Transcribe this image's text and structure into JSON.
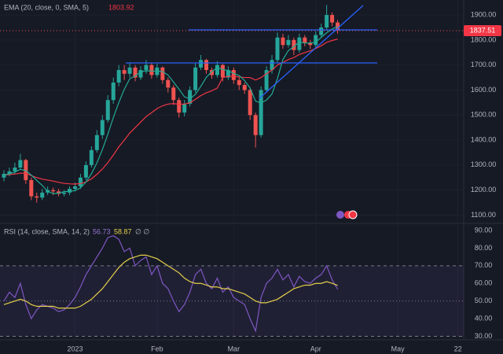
{
  "chart_data": [
    {
      "type": "candlestick",
      "indicator_label": "EMA (20, close, 0, SMA, 5)",
      "categories": [
        null,
        null,
        null,
        null,
        null,
        null,
        null,
        null,
        null,
        null,
        null,
        null,
        null,
        "2023",
        null,
        null,
        null,
        null,
        null,
        null,
        null,
        null,
        null,
        null,
        null,
        null,
        null,
        null,
        "Feb",
        null,
        null,
        null,
        null,
        null,
        null,
        null,
        null,
        null,
        null,
        null,
        null,
        null,
        "Mar",
        null,
        null,
        null,
        null,
        null,
        null,
        null,
        null,
        null,
        null,
        null,
        null,
        null,
        null,
        "Apr",
        null,
        null,
        null,
        null,
        null,
        null,
        null,
        null,
        null,
        null,
        null,
        null,
        null,
        null,
        "May",
        null,
        null,
        null,
        null,
        null,
        null,
        null,
        null,
        null,
        null,
        "22"
      ],
      "open": [
        1250,
        1265,
        1275,
        1290,
        1320,
        1240,
        1175,
        1170,
        1190,
        1200,
        1195,
        1185,
        1190,
        1205,
        1215,
        1250,
        1300,
        1360,
        1420,
        1480,
        1560,
        1630,
        1680,
        1665,
        1690,
        1650,
        1680,
        1700,
        1660,
        1690,
        1640,
        1610,
        1560,
        1510,
        1545,
        1600,
        1690,
        1720,
        1680,
        1660,
        1700,
        1650,
        1680,
        1640,
        1620,
        1600,
        1500,
        1420,
        1600,
        1680,
        1720,
        1810,
        1780,
        1800,
        1760,
        1810,
        1790,
        1780,
        1820,
        1850,
        1900,
        1870,
        null,
        null,
        null,
        null,
        null,
        null,
        null,
        null,
        null,
        null,
        null,
        null,
        null,
        null,
        null,
        null,
        null,
        null,
        null,
        null,
        null,
        null
      ],
      "high": [
        1280,
        1290,
        1310,
        1345,
        1325,
        1250,
        1190,
        1205,
        1215,
        1210,
        1205,
        1200,
        1215,
        1230,
        1265,
        1315,
        1375,
        1440,
        1500,
        1580,
        1650,
        1700,
        1700,
        1710,
        1700,
        1695,
        1720,
        1710,
        1705,
        1695,
        1650,
        1620,
        1570,
        1560,
        1615,
        1710,
        1740,
        1725,
        1690,
        1715,
        1705,
        1695,
        1690,
        1650,
        1630,
        1610,
        1510,
        1615,
        1695,
        1740,
        1830,
        1825,
        1820,
        1810,
        1825,
        1820,
        1800,
        1835,
        1865,
        1940,
        1910,
        1880,
        null,
        null,
        null,
        null,
        null,
        null,
        null,
        null,
        null,
        null,
        null,
        null,
        null,
        null,
        null,
        null,
        null,
        null,
        null,
        null,
        null,
        null
      ],
      "low": [
        1235,
        1255,
        1265,
        1280,
        1225,
        1160,
        1150,
        1160,
        1180,
        1180,
        1175,
        1175,
        1180,
        1195,
        1205,
        1240,
        1290,
        1350,
        1405,
        1470,
        1545,
        1615,
        1640,
        1650,
        1635,
        1640,
        1665,
        1645,
        1650,
        1625,
        1590,
        1540,
        1490,
        1495,
        1535,
        1590,
        1680,
        1665,
        1645,
        1650,
        1635,
        1640,
        1625,
        1600,
        1585,
        1480,
        1370,
        1410,
        1590,
        1665,
        1710,
        1765,
        1770,
        1740,
        1750,
        1775,
        1765,
        1770,
        1810,
        1840,
        1855,
        1825,
        null,
        null,
        null,
        null,
        null,
        null,
        null,
        null,
        null,
        null,
        null,
        null,
        null,
        null,
        null,
        null,
        null,
        null,
        null,
        null,
        null,
        null
      ],
      "close": [
        1265,
        1275,
        1290,
        1320,
        1240,
        1175,
        1170,
        1190,
        1200,
        1195,
        1185,
        1190,
        1205,
        1215,
        1250,
        1300,
        1360,
        1420,
        1480,
        1560,
        1630,
        1680,
        1665,
        1690,
        1650,
        1680,
        1700,
        1660,
        1690,
        1640,
        1610,
        1560,
        1510,
        1545,
        1600,
        1690,
        1720,
        1680,
        1660,
        1700,
        1650,
        1680,
        1640,
        1620,
        1600,
        1500,
        1420,
        1600,
        1680,
        1720,
        1810,
        1780,
        1800,
        1760,
        1810,
        1790,
        1780,
        1820,
        1850,
        1900,
        1870,
        1837.51,
        null,
        null,
        null,
        null,
        null,
        null,
        null,
        null,
        null,
        null,
        null,
        null,
        null,
        null,
        null,
        null,
        null,
        null,
        null,
        null,
        null,
        null
      ],
      "up_color": "#26a69a",
      "down_color": "#ef5350",
      "lines": [
        {
          "color": "#f23645",
          "values": [
            1260,
            1262,
            1264,
            1268,
            1267,
            1258,
            1250,
            1244,
            1240,
            1236,
            1231,
            1227,
            1225,
            1224,
            1226,
            1233,
            1245,
            1263,
            1284,
            1310,
            1340,
            1373,
            1400,
            1428,
            1450,
            1472,
            1494,
            1510,
            1526,
            1537,
            1544,
            1546,
            1543,
            1544,
            1549,
            1563,
            1578,
            1589,
            1597,
            1608,
            1650,
            1655,
            1655,
            1652,
            1650,
            1650,
            1640,
            1650,
            1665,
            1680,
            1700,
            1710,
            1722,
            1730,
            1742,
            1750,
            1757,
            1766,
            1777,
            1791,
            1798,
            1803.92,
            null,
            null,
            null,
            null,
            null,
            null,
            null,
            null,
            null,
            null,
            null,
            null,
            null,
            null,
            null,
            null,
            null,
            null,
            null,
            null,
            null,
            null
          ]
        },
        {
          "color": "#22ab94",
          "values": [
            1260,
            1265,
            1272,
            1283,
            1278,
            1260,
            1239,
            1219,
            1195,
            1186,
            1188,
            1194,
            1195,
            1198,
            1209,
            1232,
            1266,
            1309,
            1362,
            1424,
            1490,
            1550,
            1603,
            1645,
            1657,
            1673,
            1677,
            1676,
            1676,
            1674,
            1660,
            1632,
            1604,
            1573,
            1565,
            1583,
            1615,
            1651,
            1674,
            1690,
            1682,
            1678,
            1666,
            1658,
            1638,
            1608,
            1556,
            1548,
            1560,
            1584,
            1646,
            1722,
            1758,
            1774,
            1792,
            1788,
            1788,
            1792,
            1810,
            1829,
            1844,
            1855,
            null,
            null,
            null,
            null,
            null,
            null,
            null,
            null,
            null,
            null,
            null,
            null,
            null,
            null,
            null,
            null,
            null,
            null,
            null,
            null,
            null,
            null
          ]
        }
      ],
      "ylim": [
        1070,
        1960
      ],
      "yticks": [
        {
          "value": 1100,
          "label": "1100.00"
        },
        {
          "value": 1200,
          "label": "1200.00"
        },
        {
          "value": 1300,
          "label": "1300.00"
        },
        {
          "value": 1400,
          "label": "1400.00"
        },
        {
          "value": 1500,
          "label": "1500.00"
        },
        {
          "value": 1600,
          "label": "1600.00"
        },
        {
          "value": 1700,
          "label": "1700.00"
        },
        {
          "value": 1800,
          "label": "1800.00"
        },
        {
          "value": 1900,
          "label": "1900.00"
        }
      ],
      "grid": true
    },
    {
      "type": "line",
      "indicator_label": "RSI (14, close, SMA, 14, 2)",
      "extra_label": "∅ ∅",
      "series": [
        {
          "color": "#7e57c2",
          "values": [
            50,
            55,
            52,
            60,
            48,
            40,
            45,
            48,
            47,
            46,
            44,
            45,
            48,
            52,
            58,
            65,
            70,
            75,
            80,
            86,
            87,
            85,
            78,
            80,
            70,
            73,
            75,
            65,
            70,
            60,
            57,
            50,
            44,
            48,
            55,
            65,
            68,
            60,
            57,
            63,
            55,
            58,
            52,
            50,
            48,
            40,
            33,
            52,
            60,
            63,
            68,
            62,
            65,
            58,
            64,
            61,
            60,
            63,
            65,
            70,
            62,
            56.73,
            null,
            null,
            null,
            null,
            null,
            null,
            null,
            null,
            null,
            null,
            null,
            null,
            null,
            null,
            null,
            null,
            null,
            null,
            null,
            null,
            null,
            null
          ]
        },
        {
          "color": "#e3cf48",
          "values": [
            48,
            49,
            50,
            51,
            50,
            48,
            47,
            47,
            47,
            47,
            46,
            46,
            46,
            46,
            47,
            49,
            51,
            54,
            57,
            61,
            65,
            69,
            72,
            74,
            75,
            76,
            76,
            75,
            74,
            72,
            70,
            68,
            66,
            63,
            61,
            60,
            60,
            59,
            58,
            58,
            57,
            57,
            56,
            55,
            54,
            52,
            50,
            49,
            49,
            50,
            51,
            53,
            55,
            57,
            58,
            59,
            59,
            60,
            60,
            61,
            60,
            58.87,
            null,
            null,
            null,
            null,
            null,
            null,
            null,
            null,
            null,
            null,
            null,
            null,
            null,
            null,
            null,
            null,
            null,
            null,
            null,
            null,
            null,
            null
          ]
        }
      ],
      "ylim": [
        28,
        94
      ],
      "yticks": [
        {
          "value": 30,
          "label": "30.00"
        },
        {
          "value": 40,
          "label": "40.00"
        },
        {
          "value": 50,
          "label": "50.00"
        },
        {
          "value": 60,
          "label": "60.00"
        },
        {
          "value": 70,
          "label": "70.00"
        },
        {
          "value": 80,
          "label": "80.00"
        },
        {
          "value": 90,
          "label": "90.00"
        }
      ],
      "band": [
        30,
        70
      ],
      "midline": 50,
      "band_color": "#7e57c2"
    }
  ]
}
